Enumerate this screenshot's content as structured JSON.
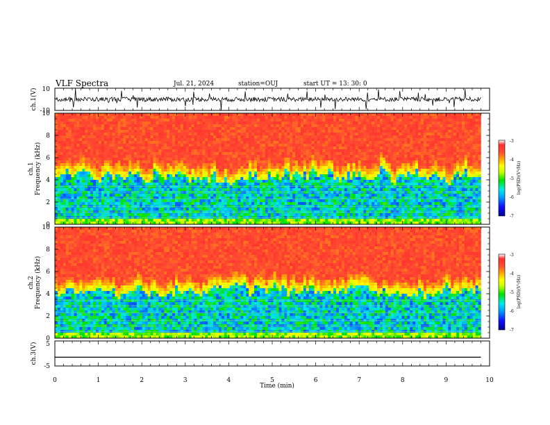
{
  "header": {
    "title": "VLF Spectra",
    "date": "Jul. 21, 2024",
    "station": "station=OUJ",
    "start": "start UT =  13: 30: 0"
  },
  "colors": {
    "spectrum_stops": [
      "#00008b",
      "#1010ff",
      "#00a0ff",
      "#00e8e8",
      "#00e000",
      "#c8ff00",
      "#ffff00",
      "#ffb000",
      "#ff5030",
      "#ff2f2f",
      "#ffffff"
    ]
  },
  "chart_data": [
    {
      "type": "line",
      "id": "ch1-waveform",
      "ylabel": "ch.1(V)",
      "ylim": [
        -10,
        10
      ],
      "yticks": [
        "10",
        "-10"
      ],
      "xlim": [
        0,
        10
      ],
      "description_level": "noisy waveform centered near 0 V with spikes to about ±10 V"
    },
    {
      "type": "heatmap",
      "id": "ch1-spectrogram",
      "ylabel": "ch.1\nFrequency (kHz)",
      "ylim": [
        0,
        10
      ],
      "yticks": [
        "0",
        "2",
        "4",
        "6",
        "8",
        "10"
      ],
      "xlim": [
        0,
        10
      ],
      "data_end_min": 9.8,
      "colorbar": {
        "label": "log(PSD)(V²/Hz)",
        "range": [
          -7,
          -3
        ],
        "ticks": [
          "-3",
          "-4",
          "-5",
          "-6",
          "-7"
        ]
      }
    },
    {
      "type": "heatmap",
      "id": "ch2-spectrogram",
      "ylabel": "ch.2\nFrequency (kHz)",
      "ylim": [
        0,
        10
      ],
      "yticks": [
        "0",
        "2",
        "4",
        "6",
        "8",
        "10"
      ],
      "xlim": [
        0,
        10
      ],
      "data_end_min": 9.8,
      "colorbar": {
        "label": "log(PSD)(V²/Hz)",
        "range": [
          -7,
          -3
        ],
        "ticks": [
          "-3",
          "-4",
          "-5",
          "-6",
          "-7"
        ]
      }
    },
    {
      "type": "line",
      "id": "ch3-waveform",
      "ylabel": "ch.3(V)",
      "ylim": [
        -5,
        5
      ],
      "yticks": [
        "5",
        "-5"
      ],
      "xlim": [
        0,
        10
      ],
      "x": [
        0,
        9.8
      ],
      "values": [
        -1.5,
        -1.5
      ]
    }
  ],
  "xaxis": {
    "label": "Time (min)",
    "ticks": [
      "0",
      "1",
      "2",
      "3",
      "4",
      "5",
      "6",
      "7",
      "8",
      "9",
      "10"
    ]
  }
}
